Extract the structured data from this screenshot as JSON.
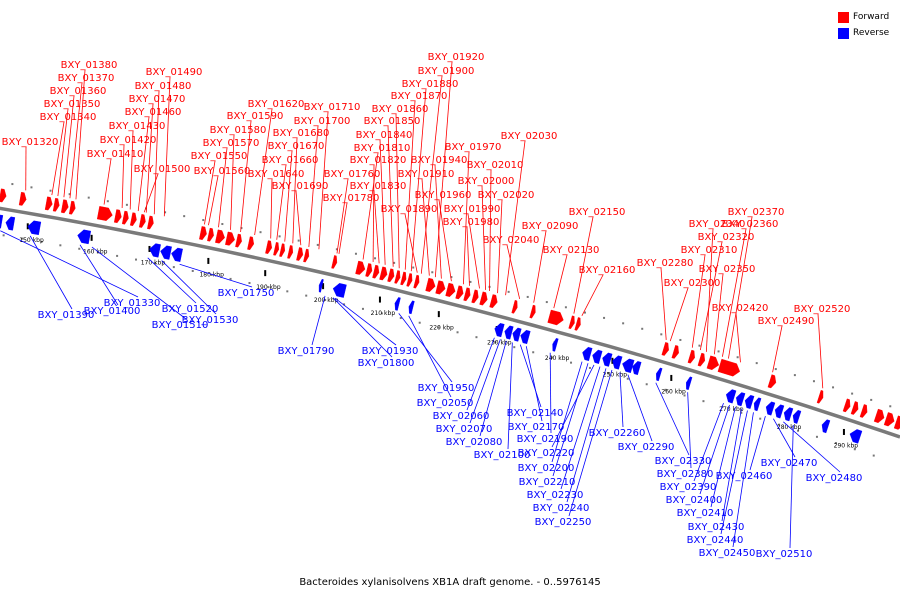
{
  "legend": {
    "forward_label": "Forward",
    "reverse_label": "Reverse",
    "forward_color": "#ff0000",
    "reverse_color": "#0000ff"
  },
  "caption": "Bacteroides xylanisolvens XB1A draft genome. - 0..5976145",
  "colors": {
    "forward": "#ff0000",
    "reverse": "#0000ff",
    "backbone": "#7a7a7a",
    "tick": "#000000"
  },
  "scale": {
    "unit": "kbp",
    "ticks": [
      "150 kbp",
      "160 kbp",
      "170 kbp",
      "180 kbp",
      "190 kbp",
      "200 kbp",
      "210 kbp",
      "220 kbp",
      "230 kbp",
      "240 kbp",
      "250 kbp",
      "260 kbp",
      "270 kbp",
      "280 kbp",
      "290 kbp"
    ]
  },
  "forward_genes": [
    "BXY_01320",
    "BXY_01340",
    "BXY_01350",
    "BXY_01360",
    "BXY_01370",
    "BXY_01380",
    "BXY_01410",
    "BXY_01420",
    "BXY_01430",
    "BXY_01460",
    "BXY_01470",
    "BXY_01480",
    "BXY_01490",
    "BXY_01500",
    "BXY_01550",
    "BXY_01560",
    "BXY_01570",
    "BXY_01580",
    "BXY_01590",
    "BXY_01620",
    "BXY_01640",
    "BXY_01660",
    "BXY_01670",
    "BXY_01680",
    "BXY_01690",
    "BXY_01700",
    "BXY_01710",
    "BXY_01760",
    "BXY_01780",
    "BXY_01810",
    "BXY_01820",
    "BXY_01830",
    "BXY_01840",
    "BXY_01850",
    "BXY_01860",
    "BXY_01870",
    "BXY_01880",
    "BXY_01890",
    "BXY_01900",
    "BXY_01910",
    "BXY_01920",
    "BXY_01940",
    "BXY_01960",
    "BXY_01970",
    "BXY_01980",
    "BXY_01990",
    "BXY_02000",
    "BXY_02010",
    "BXY_02020",
    "BXY_02030",
    "BXY_02040",
    "BXY_02090",
    "BXY_02130",
    "BXY_02150",
    "BXY_02160",
    "BXY_02280",
    "BXY_02300",
    "BXY_02310",
    "BXY_02320",
    "BXY_02340",
    "BXY_02350",
    "BXY_02360",
    "BXY_02370",
    "BXY_02420",
    "BXY_02490",
    "BXY_02520"
  ],
  "reverse_genes": [
    "BXY_01330",
    "BXY_01390",
    "BXY_01400",
    "BXY_01510",
    "BXY_01520",
    "BXY_01530",
    "BXY_01750",
    "BXY_01790",
    "BXY_01800",
    "BXY_01930",
    "BXY_01950",
    "BXY_02050",
    "BXY_02060",
    "BXY_02070",
    "BXY_02080",
    "BXY_02100",
    "BXY_02140",
    "BXY_02170",
    "BXY_02190",
    "BXY_02200",
    "BXY_02210",
    "BXY_02220",
    "BXY_02230",
    "BXY_02240",
    "BXY_02250",
    "BXY_02260",
    "BXY_02290",
    "BXY_02330",
    "BXY_02380",
    "BXY_02390",
    "BXY_02400",
    "BXY_02410",
    "BXY_02430",
    "BXY_02440",
    "BXY_02450",
    "BXY_02460",
    "BXY_02470",
    "BXY_02480",
    "BXY_02510"
  ]
}
